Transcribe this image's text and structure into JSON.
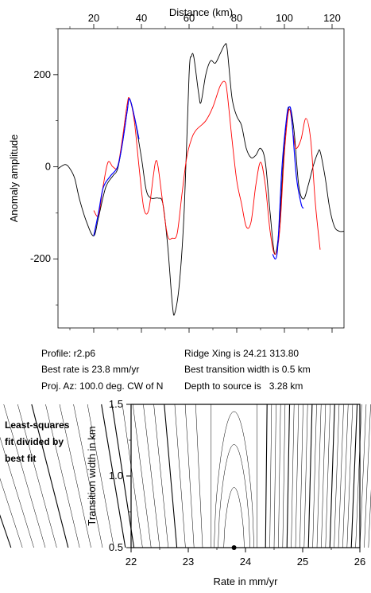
{
  "chart_data": [
    {
      "type": "line",
      "xlabel": "Distance (km)",
      "ylabel": "Anomaly amplitude",
      "xlim": [
        5,
        125
      ],
      "ylim": [
        -350,
        300
      ],
      "x_ticks": [
        20,
        40,
        60,
        80,
        100,
        120
      ],
      "y_ticks": [
        200,
        0,
        -200
      ],
      "x_tick_labels": [
        "20",
        "40",
        "60",
        "80",
        "100",
        "120"
      ],
      "y_tick_labels": [
        "200",
        "0",
        "-200"
      ],
      "grid": false,
      "legend": "none",
      "series": [
        {
          "color": "#000000",
          "points": [
            [
              5,
              -4
            ],
            [
              8,
              5
            ],
            [
              10,
              -4
            ],
            [
              12,
              -25
            ],
            [
              14,
              -70
            ],
            [
              17,
              -120
            ],
            [
              20,
              -150
            ],
            [
              22,
              -110
            ],
            [
              25,
              -45
            ],
            [
              28,
              -20
            ],
            [
              30,
              -5
            ],
            [
              32,
              50
            ],
            [
              34,
              120
            ],
            [
              35,
              148
            ],
            [
              37,
              110
            ],
            [
              40,
              20
            ],
            [
              42,
              -50
            ],
            [
              44,
              -68
            ],
            [
              47,
              -68
            ],
            [
              49,
              -80
            ],
            [
              51,
              -170
            ],
            [
              53,
              -300
            ],
            [
              54,
              -318
            ],
            [
              56,
              -250
            ],
            [
              58,
              -90
            ],
            [
              60,
              200
            ],
            [
              61,
              240
            ],
            [
              62,
              238
            ],
            [
              64,
              160
            ],
            [
              65,
              140
            ],
            [
              67,
              200
            ],
            [
              69,
              230
            ],
            [
              71,
              225
            ],
            [
              73,
              245
            ],
            [
              75,
              265
            ],
            [
              76,
              255
            ],
            [
              78,
              150
            ],
            [
              80,
              110
            ],
            [
              82,
              90
            ],
            [
              84,
              40
            ],
            [
              86,
              20
            ],
            [
              88,
              25
            ],
            [
              90,
              40
            ],
            [
              92,
              10
            ],
            [
              94,
              -100
            ],
            [
              96,
              -190
            ],
            [
              98,
              -120
            ],
            [
              100,
              50
            ],
            [
              102,
              130
            ],
            [
              104,
              80
            ],
            [
              106,
              -40
            ],
            [
              108,
              -70
            ],
            [
              110,
              -40
            ],
            [
              112,
              0
            ],
            [
              114,
              30
            ],
            [
              115,
              33
            ],
            [
              117,
              -20
            ],
            [
              119,
              -90
            ],
            [
              121,
              -130
            ],
            [
              123,
              -140
            ],
            [
              125,
              -140
            ]
          ]
        },
        {
          "color": "#ff0000",
          "points": [
            [
              20,
              -95
            ],
            [
              22,
              -105
            ],
            [
              24,
              -40
            ],
            [
              26,
              10
            ],
            [
              28,
              0
            ],
            [
              30,
              0
            ],
            [
              32,
              60
            ],
            [
              34,
              135
            ],
            [
              35,
              148
            ],
            [
              37,
              100
            ],
            [
              39,
              0
            ],
            [
              41,
              -90
            ],
            [
              43,
              -95
            ],
            [
              45,
              -20
            ],
            [
              46,
              12
            ],
            [
              47,
              0
            ],
            [
              49,
              -80
            ],
            [
              51,
              -150
            ],
            [
              53,
              -155
            ],
            [
              55,
              -145
            ],
            [
              57,
              -60
            ],
            [
              59,
              20
            ],
            [
              61,
              60
            ],
            [
              63,
              80
            ],
            [
              67,
              100
            ],
            [
              70,
              130
            ],
            [
              73,
              175
            ],
            [
              75,
              185
            ],
            [
              76,
              160
            ],
            [
              78,
              60
            ],
            [
              80,
              -30
            ],
            [
              82,
              -80
            ],
            [
              84,
              -130
            ],
            [
              86,
              -120
            ],
            [
              88,
              -40
            ],
            [
              90,
              10
            ],
            [
              92,
              -40
            ],
            [
              94,
              -140
            ],
            [
              96,
              -190
            ],
            [
              98,
              -140
            ],
            [
              100,
              30
            ],
            [
              102,
              125
            ],
            [
              104,
              60
            ],
            [
              105,
              40
            ],
            [
              107,
              60
            ],
            [
              109,
              105
            ],
            [
              111,
              60
            ],
            [
              113,
              -80
            ],
            [
              115,
              -180
            ]
          ]
        },
        {
          "color": "#0000ff",
          "points": [
            [
              20,
              -150
            ],
            [
              22,
              -100
            ],
            [
              24,
              -45
            ],
            [
              27,
              -20
            ],
            [
              30,
              0
            ],
            [
              32,
              50
            ],
            [
              34,
              120
            ],
            [
              35,
              148
            ],
            [
              37,
              110
            ],
            [
              39,
              60
            ],
            [
              95,
              -190
            ],
            [
              97,
              -185
            ],
            [
              99,
              0
            ],
            [
              101,
              110
            ],
            [
              102,
              130
            ],
            [
              103,
              110
            ],
            [
              105,
              -20
            ],
            [
              107,
              -80
            ],
            [
              108,
              -90
            ]
          ]
        }
      ]
    },
    {
      "type": "contour",
      "xlabel": "Rate in mm/yr",
      "ylabel": "Transition width in km",
      "xlim": [
        22,
        26
      ],
      "ylim": [
        0.5,
        1.5
      ],
      "x_ticks": [
        22,
        23,
        24,
        25,
        26
      ],
      "y_ticks": [
        0.5,
        1.0,
        1.5
      ],
      "x_tick_labels": [
        "22",
        "23",
        "24",
        "25",
        "26"
      ],
      "y_tick_labels": [
        "0.5",
        "1.0",
        "1.5"
      ],
      "minimum": {
        "x": 23.8,
        "y": 0.5
      },
      "grid": false,
      "legend": "none"
    }
  ],
  "annotations": {
    "profile": "Profile: r2.p6",
    "best_rate": "Best rate is 23.8 mm/yr",
    "proj_az": "Proj. Az: 100.0 deg. CW of N",
    "ridge_xing": "Ridge Xing is 24.21 313.80",
    "best_width": "Best transition width is 0.5 km",
    "depth": "Depth to source is   3.28 km"
  },
  "side_label": [
    "Least-squares",
    "fit divided by",
    "best fit"
  ]
}
